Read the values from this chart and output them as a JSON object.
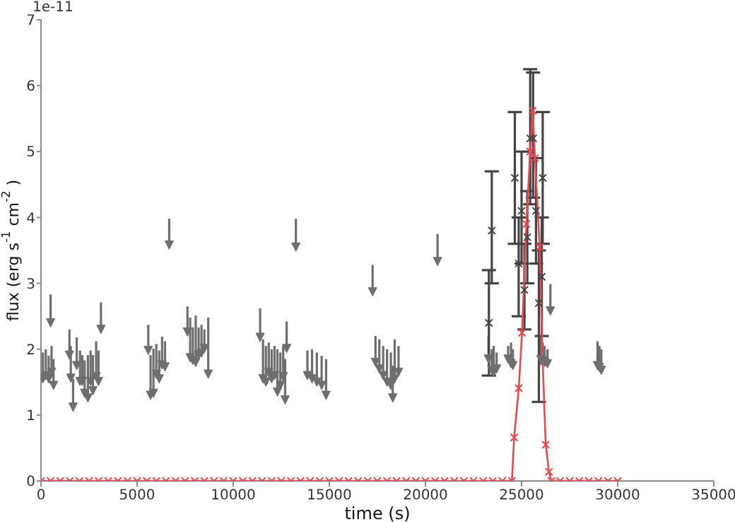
{
  "chart_data": {
    "type": "scatter",
    "xlabel": "time (s)",
    "ylabel": "flux (erg s$^{-1}$ cm$^{-2}$)",
    "annotations": [
      "1e-11"
    ],
    "xlim": [
      0,
      35000
    ],
    "ylim": [
      0,
      7
    ],
    "xticks": [
      0,
      5000,
      10000,
      15000,
      20000,
      25000,
      30000,
      35000
    ],
    "yticks": [
      0,
      1,
      2,
      3,
      4,
      5,
      6,
      7
    ],
    "series": [
      {
        "color": "#6e6e6e",
        "marker": "triangle",
        "x": [
          100,
          250,
          400,
          500,
          550,
          650,
          1480,
          1550,
          1670,
          1860,
          2030,
          2150,
          2270,
          2440,
          2580,
          2700,
          2870,
          2990,
          3120,
          5580,
          5700,
          5850,
          6000,
          6150,
          6300,
          6450,
          6670,
          7620,
          7760,
          7900,
          8050,
          8200,
          8350,
          8500,
          8700,
          11400,
          11550,
          11700,
          11850,
          12000,
          12150,
          12300,
          12450,
          12600,
          12700,
          12780,
          13260,
          13860,
          14100,
          14350,
          14600,
          14830,
          17250,
          17400,
          17600,
          17800,
          18000,
          18200,
          18300,
          18400,
          18600,
          20630,
          23280,
          23450,
          23550,
          23700,
          24300,
          24450,
          24550,
          26000,
          26100,
          26200,
          26350,
          26500,
          28950,
          29050,
          29150
        ],
        "values": [
          1.55,
          1.6,
          1.55,
          2.4,
          1.65,
          1.45,
          1.91,
          1.56,
          1.12,
          1.75,
          1.51,
          1.51,
          1.33,
          1.26,
          1.51,
          1.37,
          1.58,
          1.51,
          2.3,
          1.98,
          1.3,
          1.33,
          1.62,
          1.55,
          1.76,
          1.73,
          3.58,
          2.26,
          1.87,
          1.83,
          1.8,
          1.91,
          1.94,
          2.01,
          1.62,
          2.18,
          1.55,
          1.5,
          1.65,
          1.55,
          1.6,
          1.35,
          1.45,
          1.58,
          1.23,
          2.01,
          3.55,
          1.6,
          1.55,
          1.5,
          1.45,
          1.3,
          2.87,
          1.8,
          1.7,
          1.6,
          1.5,
          1.45,
          1.26,
          1.55,
          1.65,
          3.33,
          1.85,
          1.68,
          1.65,
          1.7,
          1.85,
          1.78,
          1.75,
          1.84,
          1.82,
          1.8,
          1.78,
          2.58,
          1.75,
          1.72,
          1.68
        ],
        "errors": [
          [
            1.55,
            1.95
          ],
          [
            1.6,
            2.0
          ],
          [
            1.55,
            1.9
          ],
          [
            2.4,
            2.83
          ],
          [
            1.65,
            2.05
          ],
          [
            1.45,
            1.85
          ],
          [
            1.91,
            2.3
          ],
          [
            1.56,
            2.05
          ],
          [
            1.12,
            1.55
          ],
          [
            1.75,
            2.18
          ],
          [
            1.51,
            1.98
          ],
          [
            1.51,
            1.91
          ],
          [
            1.33,
            1.83
          ],
          [
            1.26,
            1.91
          ],
          [
            1.51,
            1.98
          ],
          [
            1.37,
            1.91
          ],
          [
            1.58,
            2.12
          ],
          [
            1.51,
            1.98
          ],
          [
            2.3,
            2.71
          ],
          [
            1.98,
            2.37
          ],
          [
            1.3,
            1.91
          ],
          [
            1.33,
            2.01
          ],
          [
            1.62,
            2.08
          ],
          [
            1.55,
            1.98
          ],
          [
            1.76,
            2.19
          ],
          [
            1.73,
            2.12
          ],
          [
            3.58,
            3.98
          ],
          [
            2.26,
            2.65
          ],
          [
            1.87,
            2.48
          ],
          [
            1.83,
            2.33
          ],
          [
            1.8,
            2.51
          ],
          [
            1.91,
            2.33
          ],
          [
            1.94,
            2.37
          ],
          [
            2.01,
            2.3
          ],
          [
            1.62,
            2.48
          ],
          [
            2.18,
            2.62
          ],
          [
            1.55,
            2.15
          ],
          [
            1.5,
            2.05
          ],
          [
            1.65,
            2.1
          ],
          [
            1.55,
            2.0
          ],
          [
            1.6,
            2.05
          ],
          [
            1.35,
            2.0
          ],
          [
            1.45,
            1.95
          ],
          [
            1.58,
            2.05
          ],
          [
            1.23,
            1.85
          ],
          [
            2.01,
            2.42
          ],
          [
            3.55,
            3.98
          ],
          [
            1.6,
            1.98
          ],
          [
            1.55,
            2.0
          ],
          [
            1.5,
            1.95
          ],
          [
            1.45,
            1.9
          ],
          [
            1.3,
            1.85
          ],
          [
            2.87,
            3.28
          ],
          [
            1.8,
            2.2
          ],
          [
            1.7,
            2.15
          ],
          [
            1.6,
            2.05
          ],
          [
            1.5,
            2.0
          ],
          [
            1.45,
            1.95
          ],
          [
            1.26,
            1.75
          ],
          [
            1.55,
            2.15
          ],
          [
            1.65,
            2.05
          ],
          [
            3.33,
            3.75
          ],
          [
            1.85,
            2.2
          ],
          [
            1.68,
            2.0
          ],
          [
            1.65,
            2.05
          ],
          [
            1.7,
            1.95
          ],
          [
            1.85,
            2.05
          ],
          [
            1.78,
            2.1
          ],
          [
            1.75,
            2.0
          ],
          [
            1.84,
            2.2
          ],
          [
            1.82,
            2.1
          ],
          [
            1.8,
            2.05
          ],
          [
            1.78,
            2.0
          ],
          [
            2.58,
            2.99
          ],
          [
            1.75,
            2.12
          ],
          [
            1.72,
            2.05
          ],
          [
            1.68,
            2.0
          ]
        ]
      },
      {
        "color": "#444444",
        "marker": "cross",
        "x": [
          23300,
          23450,
          24650,
          24850,
          25000,
          25150,
          25300,
          25450,
          25600,
          25750,
          25900,
          26050,
          26100
        ],
        "values": [
          2.4,
          3.8,
          4.6,
          3.3,
          4.1,
          2.9,
          3.7,
          5.2,
          5.2,
          4.1,
          2.7,
          3.1,
          4.6
        ],
        "errors": [
          [
            1.6,
            3.2
          ],
          [
            3.0,
            4.7
          ],
          [
            3.6,
            5.6
          ],
          [
            2.5,
            4.0
          ],
          [
            3.3,
            5.0
          ],
          [
            2.3,
            3.6
          ],
          [
            3.0,
            4.4
          ],
          [
            4.2,
            6.25
          ],
          [
            4.3,
            6.2
          ],
          [
            3.3,
            4.9
          ],
          [
            1.2,
            3.5
          ],
          [
            2.2,
            4.0
          ],
          [
            3.6,
            5.6
          ]
        ]
      },
      {
        "type": "line",
        "color": "#e8474f",
        "marker": "cross",
        "x": [
          0,
          500,
          1000,
          1500,
          2000,
          2500,
          3000,
          3500,
          4000,
          4500,
          5000,
          5500,
          6000,
          6500,
          7000,
          7500,
          8000,
          8500,
          9000,
          9500,
          10000,
          10500,
          11000,
          11500,
          12000,
          12500,
          13000,
          13500,
          14000,
          14500,
          15000,
          15500,
          16000,
          16500,
          17000,
          17500,
          18000,
          18500,
          19000,
          19500,
          20000,
          20500,
          21000,
          21500,
          22000,
          22500,
          23000,
          23500,
          24000,
          24500,
          24614,
          24855,
          25024,
          25250,
          25450,
          25580,
          25700,
          25942,
          26100,
          26256,
          26425,
          26550,
          27000,
          27500,
          28000,
          28500,
          29000,
          29500,
          30000
        ],
        "values": [
          0,
          0,
          0,
          0,
          0,
          0,
          0,
          0,
          0,
          0,
          0,
          0,
          0,
          0,
          0,
          0,
          0,
          0,
          0,
          0,
          0,
          0,
          0,
          0,
          0,
          0,
          0,
          0,
          0,
          0,
          0,
          0,
          0,
          0,
          0,
          0,
          0,
          0,
          0,
          0,
          0,
          0,
          0,
          0,
          0,
          0,
          0,
          0,
          0,
          0,
          0.66,
          1.41,
          2.25,
          3.9,
          5.0,
          5.62,
          4.9,
          3.55,
          1.8,
          0.55,
          0.14,
          0,
          0,
          0,
          0,
          0,
          0,
          0,
          0
        ]
      }
    ]
  }
}
